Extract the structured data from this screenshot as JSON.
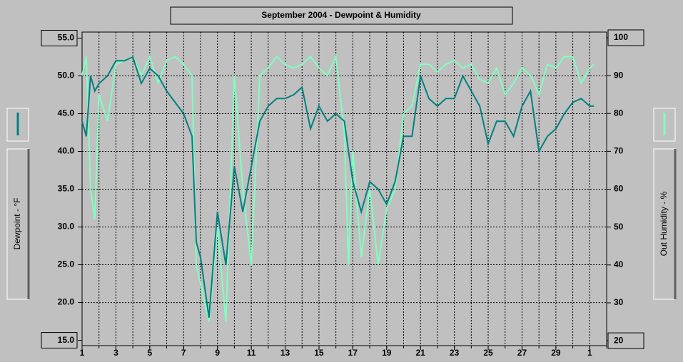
{
  "chart_data": {
    "type": "line",
    "title": "September 2004 - Dewpoint & Humidity",
    "y_label": "Dewpoint - °F",
    "y2_label": "Out Humidity - %",
    "x": [
      1,
      1.25,
      1.5,
      1.75,
      2,
      2.5,
      3,
      3.5,
      4,
      4.5,
      5,
      5.5,
      6,
      6.5,
      7,
      7.5,
      7.75,
      8,
      8.5,
      9,
      9.5,
      10,
      10.5,
      11,
      11.5,
      12,
      12.5,
      13,
      13.5,
      14,
      14.5,
      15,
      15.5,
      16,
      16.5,
      16.75,
      17,
      17.5,
      18,
      18.5,
      19,
      19.5,
      20,
      20.5,
      21,
      21.5,
      22,
      22.5,
      23,
      23.5,
      24,
      24.5,
      25,
      25.5,
      26,
      26.5,
      27,
      27.5,
      28,
      28.5,
      29,
      29.5,
      30,
      30.5,
      31,
      31.25
    ],
    "series": [
      {
        "name": "Out Humidity",
        "axis": "y2",
        "color": "#80ffc0",
        "values": [
          90,
          95,
          60,
          52,
          85,
          78,
          93,
          94,
          95,
          90,
          95,
          88,
          94,
          95,
          93,
          90,
          40,
          35,
          25,
          50,
          25,
          90,
          60,
          40,
          90,
          92,
          95,
          93,
          92,
          93,
          95,
          92,
          90,
          95,
          75,
          40,
          70,
          42,
          60,
          40,
          55,
          60,
          80,
          82,
          93,
          93,
          91,
          93,
          94,
          92,
          93,
          89,
          88,
          92,
          85,
          88,
          92,
          90,
          85,
          93,
          92,
          95,
          95,
          88,
          92,
          93
        ]
      },
      {
        "name": "Dewpoint",
        "color": "#008080",
        "values": [
          44,
          42,
          50,
          48,
          49,
          50,
          52,
          52,
          52.5,
          49,
          51,
          50,
          48,
          46.5,
          45,
          42,
          28,
          26,
          18,
          32,
          25,
          38,
          32,
          38,
          44,
          46,
          47,
          47,
          47.5,
          48.5,
          43,
          46,
          44,
          45,
          44,
          40,
          36,
          32,
          36,
          35,
          33,
          36,
          42,
          42,
          50,
          47,
          46,
          47,
          47,
          50,
          48,
          46,
          41,
          44,
          44,
          42,
          46,
          48,
          40,
          42,
          43,
          45,
          46.5,
          47,
          46,
          46
        ]
      }
    ],
    "xlim": [
      1,
      32
    ],
    "xticks": [
      1,
      3,
      5,
      7,
      9,
      11,
      13,
      15,
      17,
      19,
      21,
      23,
      25,
      27,
      29,
      {
        "value": 31,
        "label": "1"
      }
    ],
    "ylim": [
      14.3,
      55.8
    ],
    "yticks": [
      {
        "value": 15,
        "label": "15.0"
      },
      {
        "value": 20,
        "label": "20.0"
      },
      {
        "value": 25,
        "label": "25.0"
      },
      {
        "value": 30,
        "label": "30.0"
      },
      {
        "value": 35,
        "label": "35.0"
      },
      {
        "value": 40,
        "label": "40.0"
      },
      {
        "value": 45,
        "label": "45.0"
      },
      {
        "value": 50,
        "label": "50.0"
      },
      {
        "value": 55,
        "label": "55.0"
      }
    ],
    "y2lim": [
      18.7,
      101.5
    ],
    "y2ticks": [
      20,
      30,
      40,
      50,
      60,
      70,
      80,
      90,
      100
    ],
    "grid": true
  }
}
